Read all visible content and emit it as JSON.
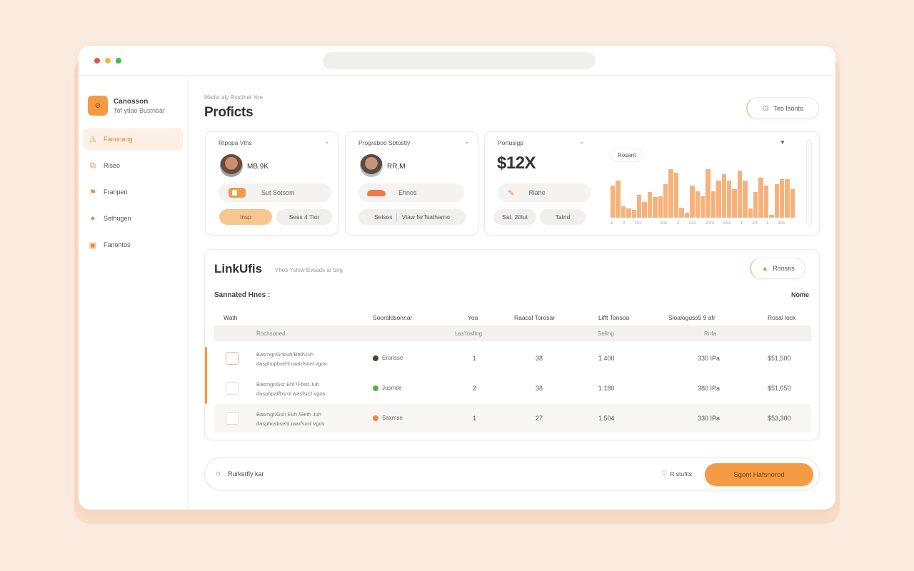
{
  "window": {
    "traffic_lights": [
      {
        "name": "close",
        "color": "#e5534b"
      },
      {
        "name": "minimize",
        "color": "#f0b93a"
      },
      {
        "name": "maximize",
        "color": "#3fb950"
      }
    ],
    "url_bar": ""
  },
  "sidebar": {
    "brand": {
      "logo_text": "⊘",
      "name": "Canosson",
      "subtitle": "Tof ytlao Bustnoar"
    },
    "items": [
      {
        "label": "Fanonang",
        "icon": "chart-icon",
        "glyph": "⚠",
        "active": true
      },
      {
        "label": "Riseo",
        "icon": "folder-icon",
        "glyph": "⧉",
        "active": false
      },
      {
        "label": "Fraripen",
        "icon": "people-icon",
        "glyph": "⚑",
        "active": false
      },
      {
        "label": "Sethugen",
        "icon": "pin-icon",
        "glyph": "●",
        "active": false
      },
      {
        "label": "Fanontos",
        "icon": "inbox-icon",
        "glyph": "▣",
        "active": false
      }
    ]
  },
  "header": {
    "eyebrow": "Madst aly Rustfnet Yoe",
    "title": "Proficts",
    "action_button": {
      "label": "Tiro Isonto",
      "icon": "clock-icon"
    }
  },
  "cards": [
    {
      "label": "Rtpopa Vths",
      "metric": "MB.9K",
      "chip_label": "Sut Sotsom",
      "buttons": [
        "Insp",
        "Sess 4 Tior"
      ]
    },
    {
      "label": "Prograboo Sbtostly",
      "metric": "RR,M",
      "chip_label": "Ehnos",
      "buttons": [
        "Selsos",
        "Vlaw fsrTsatharno"
      ]
    },
    {
      "label": "Portusigp",
      "metric": "$12X",
      "chip_label": "Rlahe",
      "buttons": [
        "Sat. 20lut",
        "Tatnd"
      ],
      "chart_chip": "Rosant"
    }
  ],
  "chart_data": {
    "type": "bar",
    "title": "",
    "legend_chip": "Rosant",
    "values": [
      62,
      72,
      22,
      18,
      15,
      45,
      30,
      50,
      40,
      42,
      65,
      95,
      88,
      20,
      10,
      62,
      52,
      42,
      95,
      52,
      72,
      85,
      72,
      55,
      92,
      72,
      18,
      50,
      78,
      62,
      5,
      65,
      75,
      75,
      55
    ],
    "xticks": [
      "1",
      "0",
      "10s",
      "",
      "20s",
      "3",
      "22s",
      "20rs",
      "20s",
      "1",
      "10",
      "1",
      "10s",
      ""
    ],
    "ylim": [
      0,
      100
    ],
    "color": "#f6b27a",
    "grid": false
  },
  "table": {
    "title": "LinkUfis",
    "subtitle": "Yhes Yslow Evsads al Sirg",
    "action_button": {
      "label": "Ronsns",
      "icon": "user-icon"
    },
    "section_label": "Sannated Hnes :",
    "right_label": "Nome",
    "columns": [
      "Wath",
      "Sooraldsonnar",
      "Yoa",
      "Raacal Torosar",
      "Lifft Tonsoa",
      "Sloaloguss5 9 afr",
      "Rosal lock"
    ],
    "subheader": [
      "Rochsoned",
      "Las'fosfing",
      "Sefing",
      "Rnfa"
    ],
    "rows": [
      {
        "desc_line1": "Basmgr/Gnbuh/BethJuh",
        "desc_line2": "dasphopbsehl.raarrfsonl vgos",
        "status": "Eronsse",
        "status_color": "#3e4a2e",
        "col3": "1",
        "col4": "38",
        "col5": "1.400",
        "col6": "330 IPa",
        "col7": "$51,500",
        "checked_accent": true
      },
      {
        "desc_line1": "Basmgr/Gsr Ehf /Fbsit.Juh",
        "desc_line2": "dasphpatfbsml wasfsrc/ vgos",
        "status": "Jusmse",
        "status_color": "#5cb040",
        "col3": "2",
        "col4": "38",
        "col5": "1.180",
        "col6": "380 IPa",
        "col7": "$51,650",
        "checked_accent": false
      },
      {
        "desc_line1": "Basmgr/Gsn Euh /Beth Juh",
        "desc_line2": "dasphosbsehl.raarfsonl vgos",
        "status": "Saxmse",
        "status_color": "#f08a3c",
        "col3": "1",
        "col4": "27",
        "col5": "1.504",
        "col6": "330 IPa",
        "col7": "$53,300",
        "checked_accent": false
      }
    ]
  },
  "footer": {
    "left_label": "Rurksrfly kar",
    "left_icon": "lock-icon",
    "right_label": "R stufits",
    "right_icon": "location-icon",
    "cta_label": "Sgont Hafsnorod"
  }
}
